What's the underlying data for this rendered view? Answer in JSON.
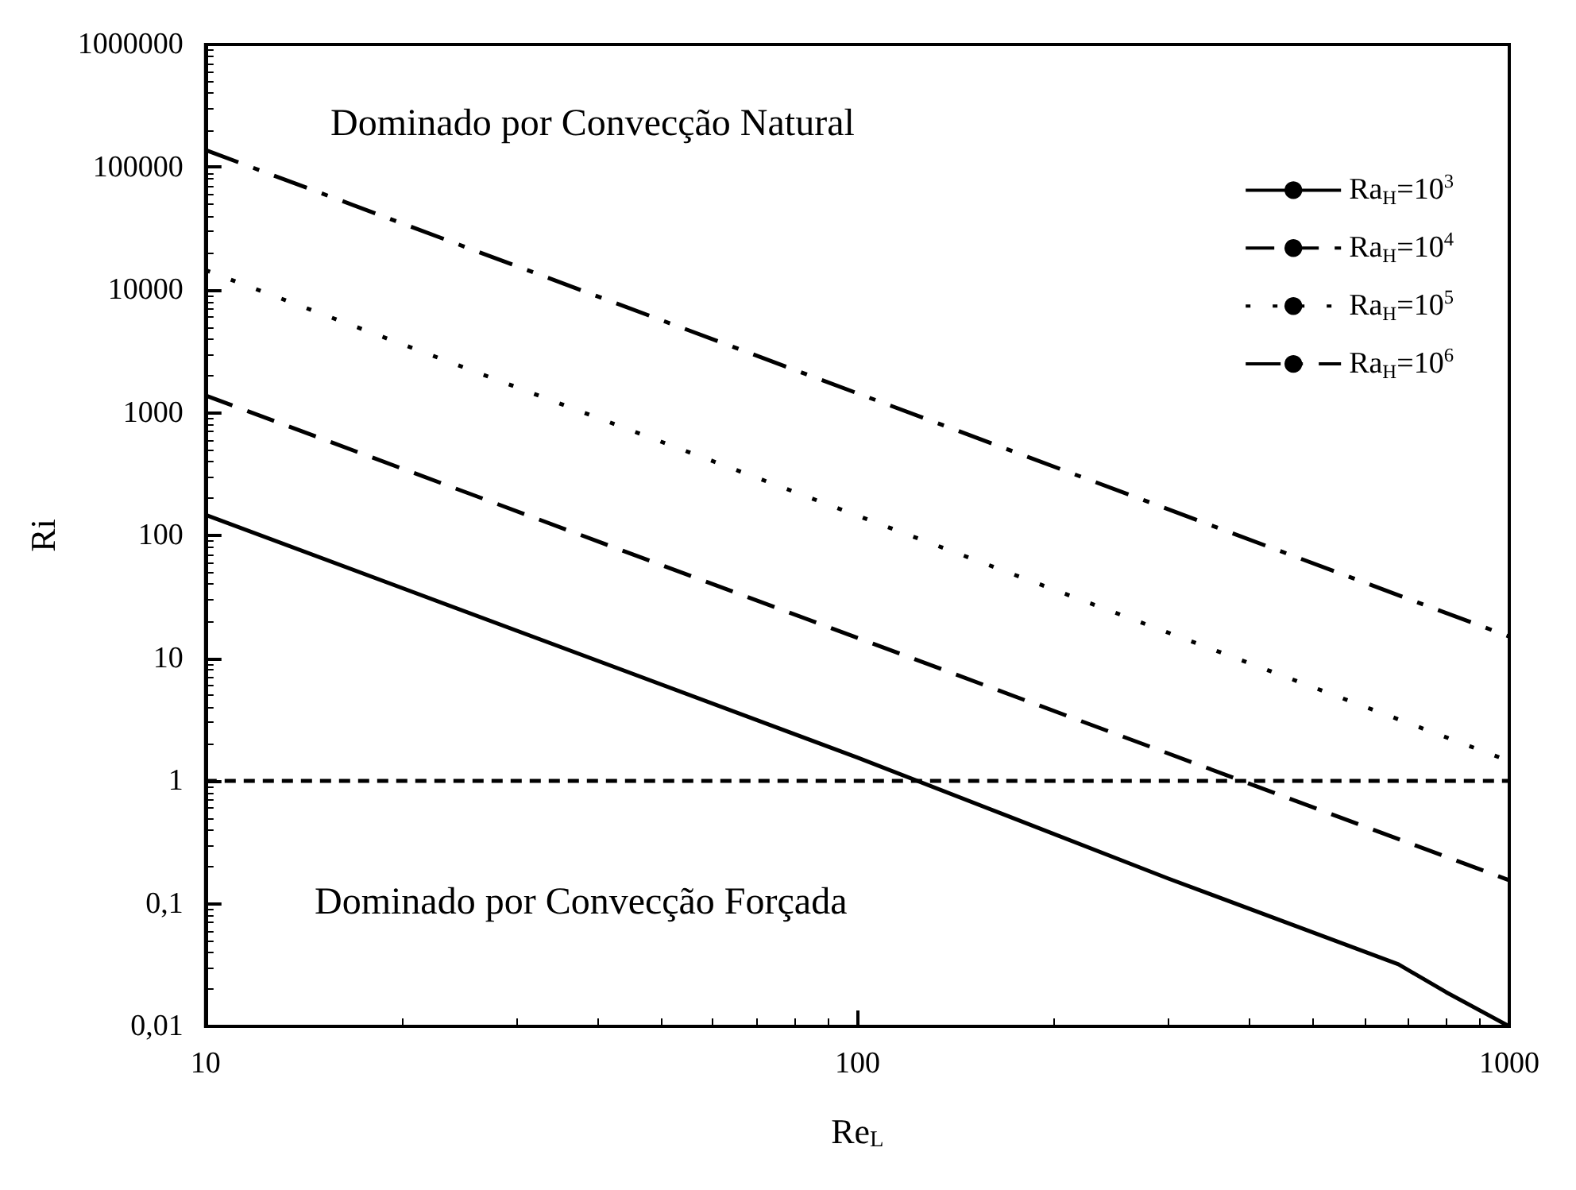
{
  "chart_data": {
    "type": "line",
    "xlabel": "Re$_{L}$",
    "ylabel": "Ri",
    "log": "xy",
    "xlim": [
      10,
      1000
    ],
    "ylim": [
      0.01,
      1000000
    ],
    "xticks": [
      10,
      100,
      1000
    ],
    "yticks": [
      {
        "value": 0.01,
        "label": "0,01"
      },
      {
        "value": 0.1,
        "label": "0,1"
      },
      1,
      10,
      100,
      1000,
      10000,
      100000,
      1000000
    ],
    "legend": "top right",
    "grid": false,
    "marker": "none",
    "series": [
      {
        "name": "Ra$_{H}$=10$^{3}$",
        "color": "#000000",
        "line_style": "solid",
        "x": [
          10,
          100,
          300,
          676,
          800,
          1000
        ],
        "values": [
          147,
          1.55,
          0.16,
          0.032,
          0.019,
          0.01
        ]
      },
      {
        "name": "Ra$_{H}$=10$^{4}$",
        "color": "#000000",
        "line_style": "dashed",
        "x": [
          10,
          1000
        ],
        "values": [
          1380,
          0.155
        ]
      },
      {
        "name": "Ra$_{H}$=10$^{5}$",
        "color": "#000000",
        "line_style": "dotted",
        "x": [
          10,
          1000
        ],
        "values": [
          14500,
          1.45
        ]
      },
      {
        "name": "Ra$_{H}$=10$^{6}$",
        "color": "#000000",
        "line_style": "dashdot",
        "x": [
          10,
          1000
        ],
        "values": [
          138000,
          15
        ]
      }
    ],
    "ref_lines": [
      {
        "axis": "y",
        "value": 1,
        "color": "#000000",
        "line_style": "dotted"
      }
    ],
    "annotations": [
      "Dominado por Convecção Natural",
      "Dominado por Convecção Forçada"
    ]
  }
}
